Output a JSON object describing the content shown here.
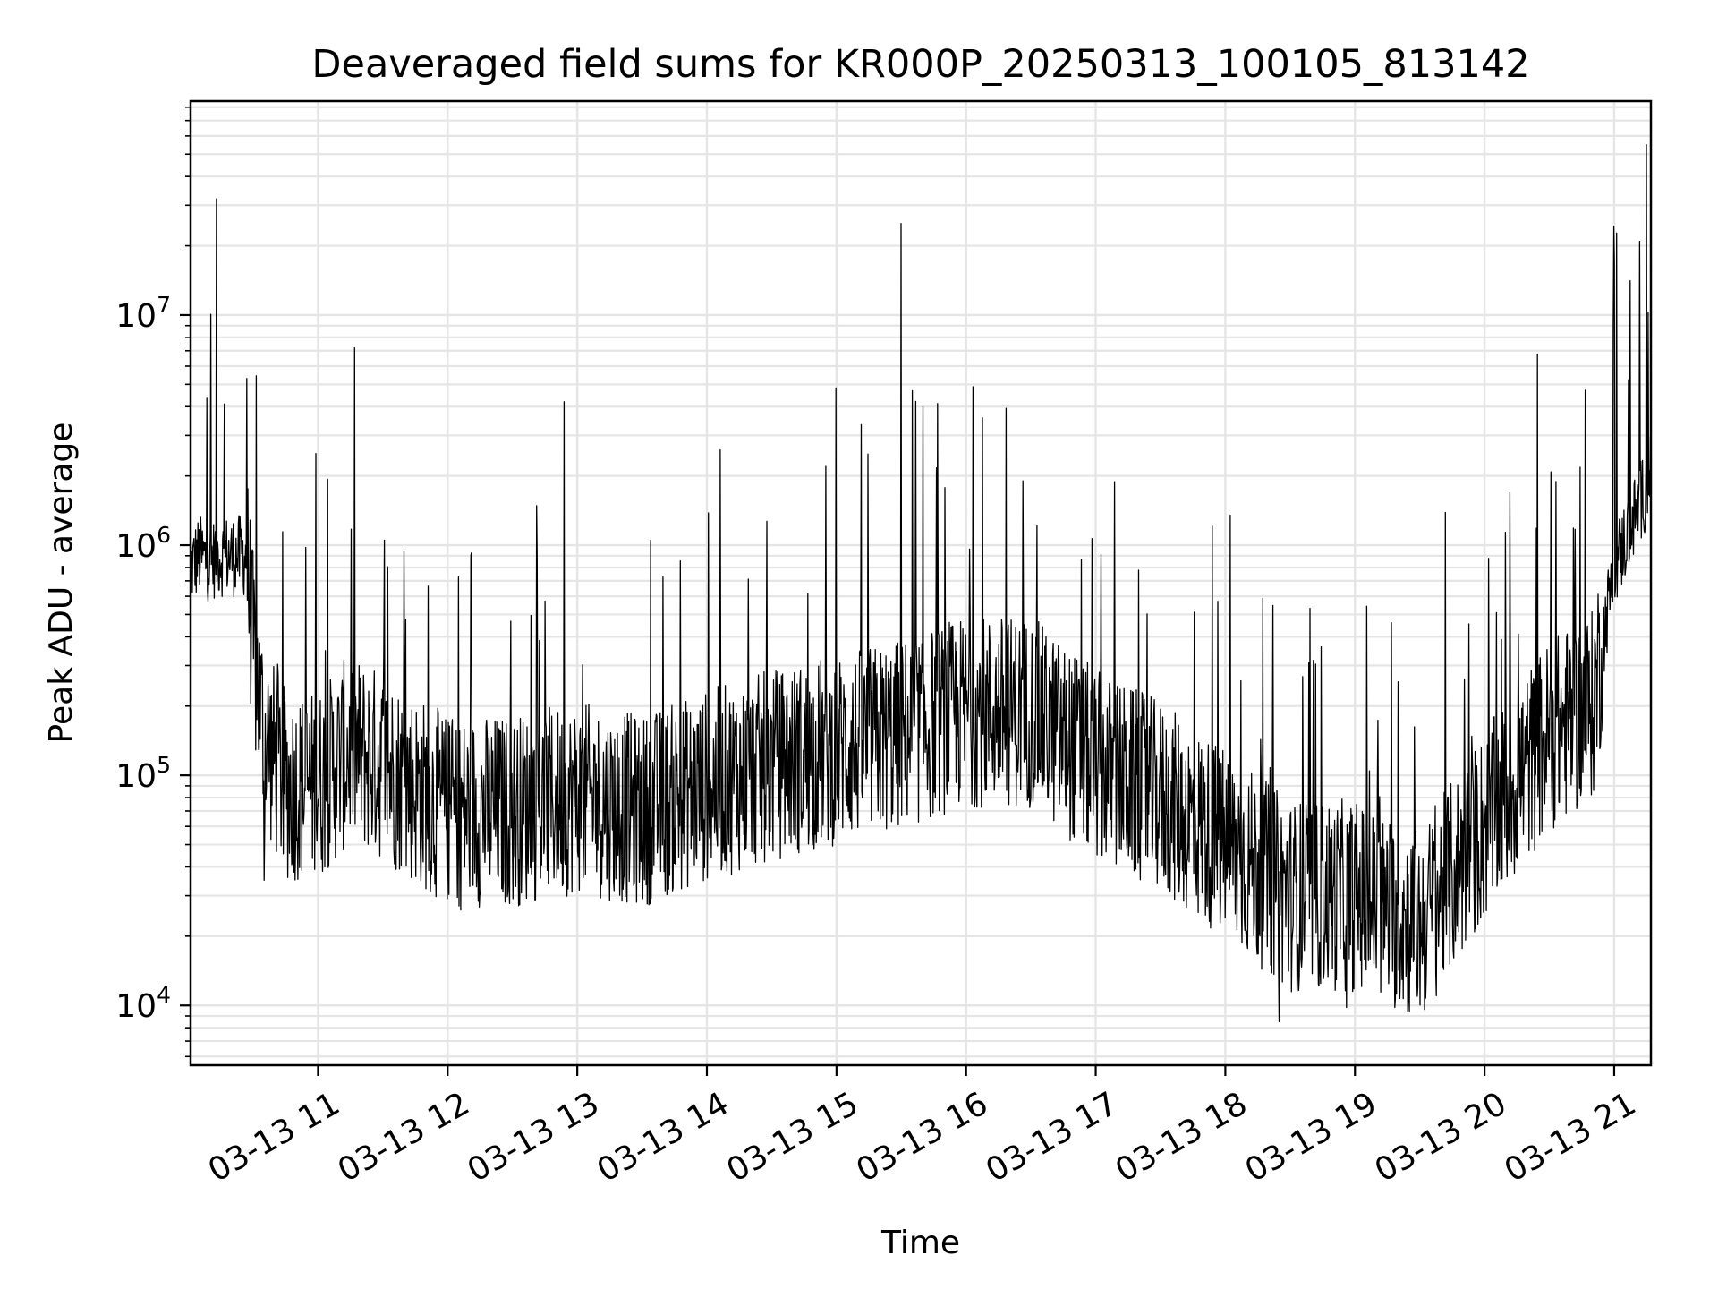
{
  "chart_data": {
    "type": "line",
    "title": "Deaveraged field sums for KR000P_20250313_100105_813142",
    "xlabel": "Time",
    "ylabel": "Peak ADU - average",
    "yscale": "log",
    "grid": true,
    "line_color": "#000000",
    "grid_color": "#e5e5e5",
    "xlim": [
      "03-13 10:01",
      "03-13 21:17"
    ],
    "ylim": [
      5500,
      85000000
    ],
    "x_ticks": [
      "03-13 11",
      "03-13 12",
      "03-13 13",
      "03-13 14",
      "03-13 15",
      "03-13 16",
      "03-13 17",
      "03-13 18",
      "03-13 19",
      "03-13 20",
      "03-13 21"
    ],
    "y_ticks": [
      {
        "base": "10",
        "exp": "4",
        "value": 10000
      },
      {
        "base": "10",
        "exp": "5",
        "value": 100000
      },
      {
        "base": "10",
        "exp": "6",
        "value": 1000000
      },
      {
        "base": "10",
        "exp": "7",
        "value": 10000000
      }
    ],
    "series": [
      {
        "x": [
          "03-13 10:01",
          "03-13 10:05",
          "03-13 10:10",
          "03-13 10:13",
          "03-13 10:20",
          "03-13 10:27",
          "03-13 10:30",
          "03-13 10:35",
          "03-13 10:45",
          "03-13 11:00",
          "03-13 11:15",
          "03-13 11:30",
          "03-13 12:00",
          "03-13 12:30",
          "03-13 13:00",
          "03-13 13:30",
          "03-13 14:00",
          "03-13 14:30",
          "03-13 15:00",
          "03-13 15:30",
          "03-13 16:00",
          "03-13 16:30",
          "03-13 17:00",
          "03-13 17:30",
          "03-13 18:00",
          "03-13 18:30",
          "03-13 19:00",
          "03-13 19:30",
          "03-13 20:00",
          "03-13 20:30",
          "03-13 20:50",
          "03-13 21:00",
          "03-13 21:17"
        ],
        "y": [
          800000,
          900000,
          850000,
          900000,
          900000,
          900000,
          350000,
          150000,
          90000,
          90000,
          130000,
          110000,
          70000,
          70000,
          80000,
          70000,
          90000,
          110000,
          130000,
          150000,
          190000,
          190000,
          110000,
          80000,
          50000,
          30000,
          30000,
          22000,
          60000,
          150000,
          200000,
          800000,
          2000000
        ]
      }
    ],
    "peaks": [
      {
        "x": "03-13 10:13",
        "y": 32000000
      },
      {
        "x": "03-13 10:27",
        "y": 5300000
      },
      {
        "x": "03-13 10:59",
        "y": 2500000
      },
      {
        "x": "03-13 11:17",
        "y": 7200000
      },
      {
        "x": "03-13 12:54",
        "y": 4200000
      },
      {
        "x": "03-13 14:55",
        "y": 2200000
      },
      {
        "x": "03-13 15:30",
        "y": 25000000
      },
      {
        "x": "03-13 15:40",
        "y": 4000000
      },
      {
        "x": "03-13 21:00",
        "y": 17000000
      },
      {
        "x": "03-13 21:15",
        "y": 55000000
      }
    ],
    "troughs": [
      {
        "x": "03-13 10:35",
        "y": 35000
      },
      {
        "x": "03-13 12:06",
        "y": 26000
      },
      {
        "x": "03-13 18:25",
        "y": 8500
      },
      {
        "x": "03-13 18:56",
        "y": 9800
      }
    ]
  }
}
